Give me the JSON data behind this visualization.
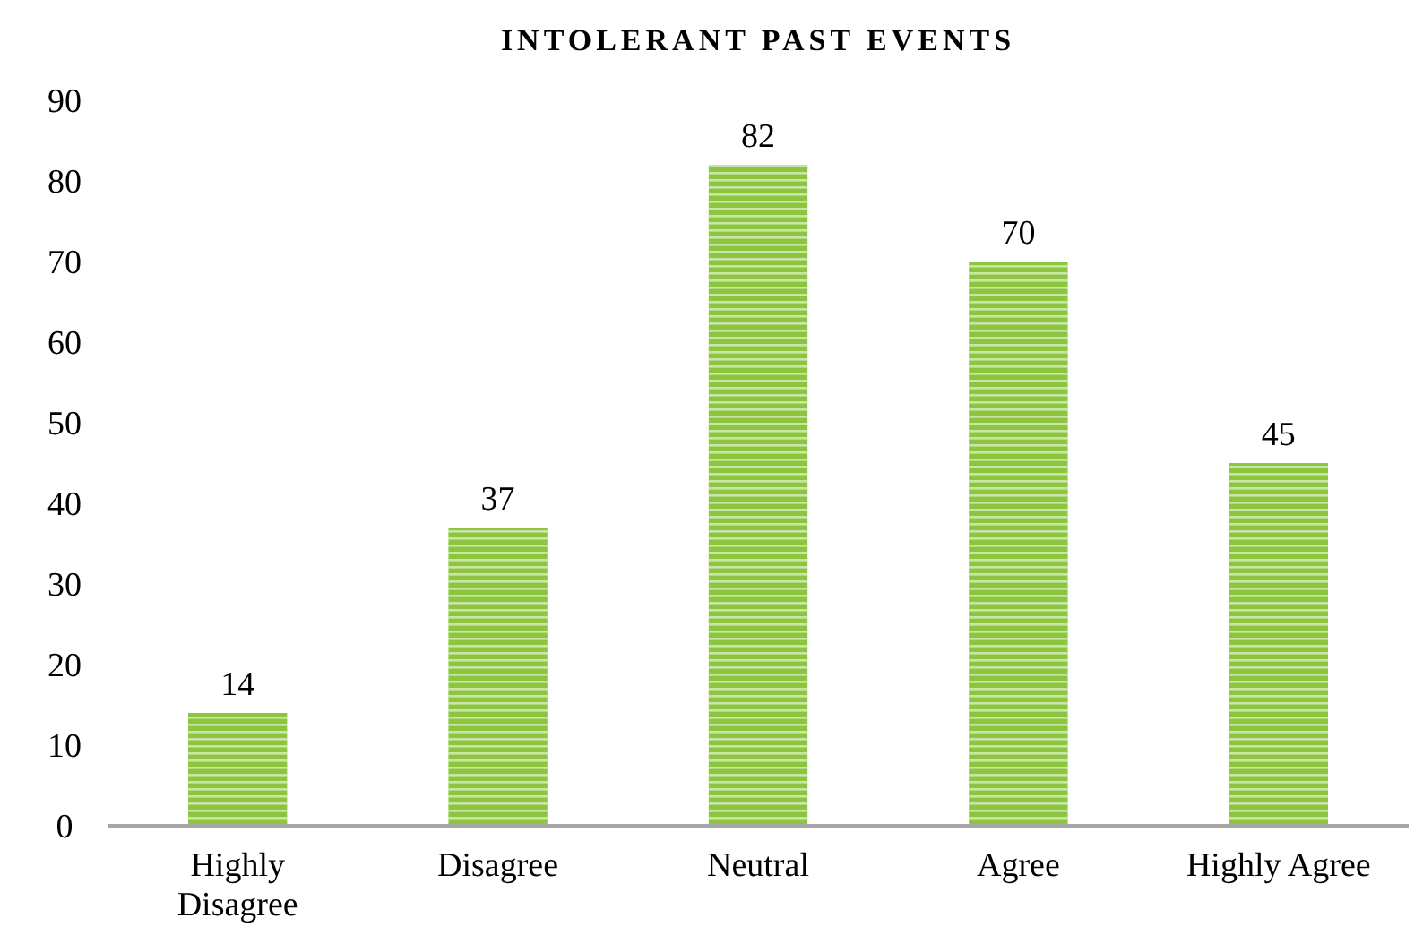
{
  "chart_data": {
    "type": "bar",
    "title": "INTOLERANT PAST EVENTS",
    "categories": [
      "Highly Disagree",
      "Disagree",
      "Neutral",
      "Agree",
      "Highly Agree"
    ],
    "values": [
      14,
      37,
      82,
      70,
      45
    ],
    "color": "#8cc63e",
    "ylim": [
      0,
      90
    ],
    "yticks": [
      0,
      10,
      20,
      30,
      40,
      50,
      60,
      70,
      80,
      90
    ],
    "grid": false,
    "data_labels": true
  }
}
